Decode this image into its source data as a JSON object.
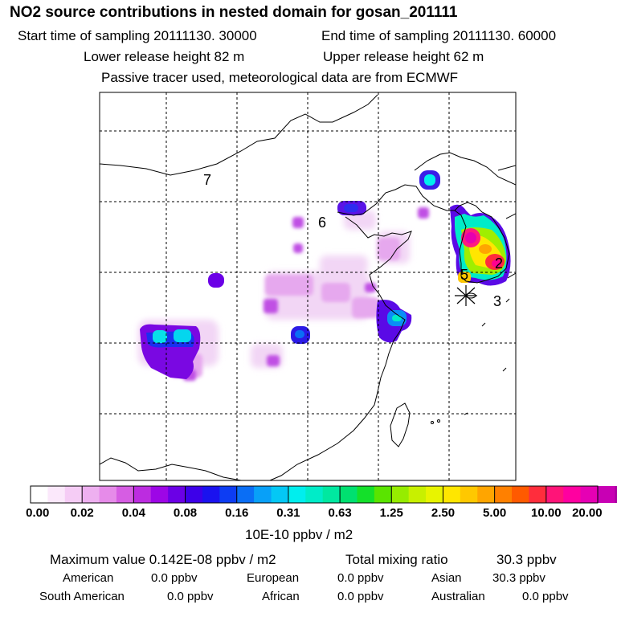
{
  "header": {
    "title": "NO2 source contributions in nested domain for gosan_201111",
    "start_time": "Start time of sampling 20111130. 30000",
    "end_time": "End time of sampling 20111130. 60000",
    "lower_height": "Lower release height   82 m",
    "upper_height": "Upper release height   62 m",
    "tracer_note": "Passive tracer used, meteorological data are from ECMWF"
  },
  "map": {
    "station_marker": "asterisk-icon",
    "region_labels": [
      "7",
      "6",
      "5",
      "2",
      "3"
    ]
  },
  "colorbar": {
    "tick_labels": [
      "0.00",
      "0.02",
      "0.04",
      "0.08",
      "0.16",
      "0.31",
      "0.63",
      "1.25",
      "2.50",
      "5.00",
      "10.00",
      "20.00"
    ],
    "units": "10E-10 ppbv / m2",
    "colors": [
      "#ffffff",
      "#fbe8fb",
      "#f5ccf5",
      "#eeb0f0",
      "#e68be9",
      "#d65de3",
      "#bc2ce0",
      "#9d06e6",
      "#6b00e6",
      "#3d00e9",
      "#1a12ef",
      "#0d3df3",
      "#0a6ef5",
      "#08a0f8",
      "#04c8f5",
      "#00eeee",
      "#00ecc8",
      "#00e8a0",
      "#00e070",
      "#14e02a",
      "#5ae400",
      "#96ec00",
      "#c8f000",
      "#e8f400",
      "#ffe600",
      "#ffc800",
      "#ffa500",
      "#ff8000",
      "#ff5a00",
      "#ff2d3c",
      "#ff1478",
      "#ff00a0",
      "#e600b4",
      "#c800b4",
      "#aa00a0",
      "#7a0066"
    ]
  },
  "stats": {
    "max_value": "Maximum value  0.142E-08 ppbv / m2",
    "total_mixing": "Total mixing ratio",
    "total_value": "30.3 ppbv",
    "regions": {
      "american": {
        "label": "American",
        "value": "0.0 ppbv"
      },
      "european": {
        "label": "European",
        "value": "0.0 ppbv"
      },
      "asian": {
        "label": "Asian",
        "value": "30.3 ppbv"
      },
      "south_american": {
        "label": "South American",
        "value": "0.0 ppbv"
      },
      "african": {
        "label": "African",
        "value": "0.0 ppbv"
      },
      "australian": {
        "label": "Australian",
        "value": "0.0 ppbv"
      }
    }
  }
}
